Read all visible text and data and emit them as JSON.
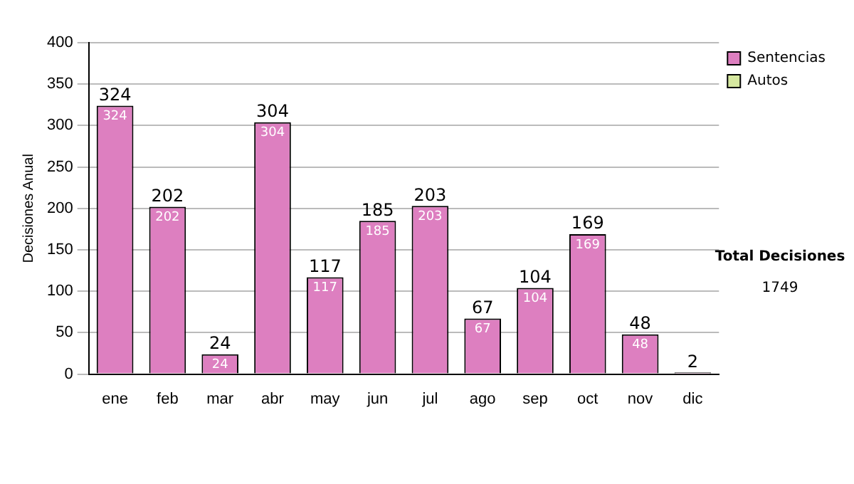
{
  "chart_data": {
    "type": "bar",
    "stacked": true,
    "ylabel": "Decisiones Anual",
    "categories": [
      "ene",
      "feb",
      "mar",
      "abr",
      "may",
      "jun",
      "jul",
      "ago",
      "sep",
      "oct",
      "nov",
      "dic"
    ],
    "series": [
      {
        "name": "Sentencias",
        "color": "#dd7fc0",
        "values": [
          324,
          202,
          24,
          304,
          117,
          185,
          203,
          67,
          104,
          169,
          48,
          2
        ],
        "value_labels": [
          "324",
          "202",
          "24",
          "304",
          "117",
          "185",
          "203",
          "67",
          "104",
          "169",
          "48",
          null
        ]
      },
      {
        "name": "Autos",
        "color": "#d6e8a0",
        "values": [
          0,
          0,
          0,
          0,
          0,
          0,
          0,
          0,
          0,
          0,
          0,
          0
        ]
      }
    ],
    "totals": [
      "324",
      "202",
      "24",
      "304",
      "117",
      "185",
      "203",
      "67",
      "104",
      "169",
      "48",
      "2"
    ],
    "ylim": [
      0,
      400
    ],
    "yticks": [
      0,
      50,
      100,
      150,
      200,
      250,
      300,
      350,
      400
    ],
    "grid": "y",
    "legend": "right",
    "annotations": [
      "Total Decisiones",
      "1749"
    ]
  }
}
